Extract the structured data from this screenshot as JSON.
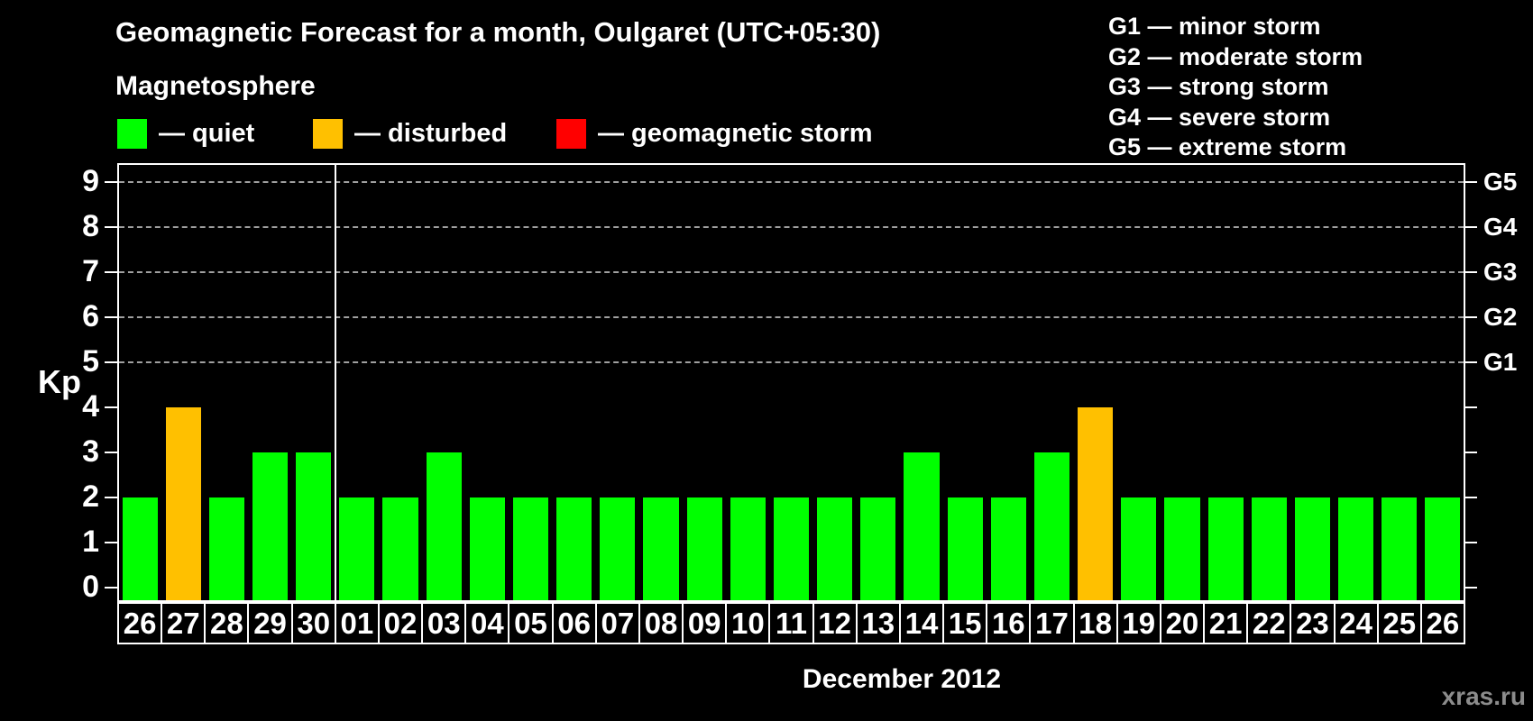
{
  "title": "Geomagnetic Forecast for a month, Oulgaret (UTC+05:30)",
  "subtitle": "Magnetosphere",
  "legend": {
    "items": [
      {
        "label": "— quiet",
        "status": "quiet",
        "color": "#00ff00"
      },
      {
        "label": "— disturbed",
        "status": "disturbed",
        "color": "#ffc000"
      },
      {
        "label": "— geomagnetic storm",
        "status": "storm",
        "color": "#ff0000"
      }
    ]
  },
  "storm_scale": [
    "G1 — minor storm",
    "G2 — moderate storm",
    "G3 — strong storm",
    "G4 — severe storm",
    "G5 — extreme storm"
  ],
  "watermark": "xras.ru",
  "chart_data": {
    "type": "bar",
    "title": "Geomagnetic Forecast for a month, Oulgaret (UTC+05:30)",
    "ylabel": "Kp",
    "xlabel": "December 2012",
    "ylim": [
      0,
      9
    ],
    "yticks": [
      0,
      1,
      2,
      3,
      4,
      5,
      6,
      7,
      8,
      9
    ],
    "gridlines_at": [
      5,
      6,
      7,
      8,
      9
    ],
    "grid": "dashed, only at storm levels G1–G5",
    "legend_position": "top",
    "right_axis_labels": [
      {
        "kp": 5,
        "label": "G1"
      },
      {
        "kp": 6,
        "label": "G2"
      },
      {
        "kp": 7,
        "label": "G3"
      },
      {
        "kp": 8,
        "label": "G4"
      },
      {
        "kp": 9,
        "label": "G5"
      }
    ],
    "month_separator_after_index": 4,
    "categories": [
      "26",
      "27",
      "28",
      "29",
      "30",
      "01",
      "02",
      "03",
      "04",
      "05",
      "06",
      "07",
      "08",
      "09",
      "10",
      "11",
      "12",
      "13",
      "14",
      "15",
      "16",
      "17",
      "18",
      "19",
      "20",
      "21",
      "22",
      "23",
      "24",
      "25",
      "26"
    ],
    "values": [
      2,
      4,
      2,
      3,
      3,
      2,
      2,
      3,
      2,
      2,
      2,
      2,
      2,
      2,
      2,
      2,
      2,
      2,
      3,
      2,
      2,
      3,
      4,
      2,
      2,
      2,
      2,
      2,
      2,
      2,
      2
    ],
    "statuses": [
      "quiet",
      "disturbed",
      "quiet",
      "quiet",
      "quiet",
      "quiet",
      "quiet",
      "quiet",
      "quiet",
      "quiet",
      "quiet",
      "quiet",
      "quiet",
      "quiet",
      "quiet",
      "quiet",
      "quiet",
      "quiet",
      "quiet",
      "quiet",
      "quiet",
      "quiet",
      "disturbed",
      "quiet",
      "quiet",
      "quiet",
      "quiet",
      "quiet",
      "quiet",
      "quiet",
      "quiet"
    ],
    "status_colors": {
      "quiet": "#00ff00",
      "disturbed": "#ffc000",
      "storm": "#ff0000"
    }
  }
}
